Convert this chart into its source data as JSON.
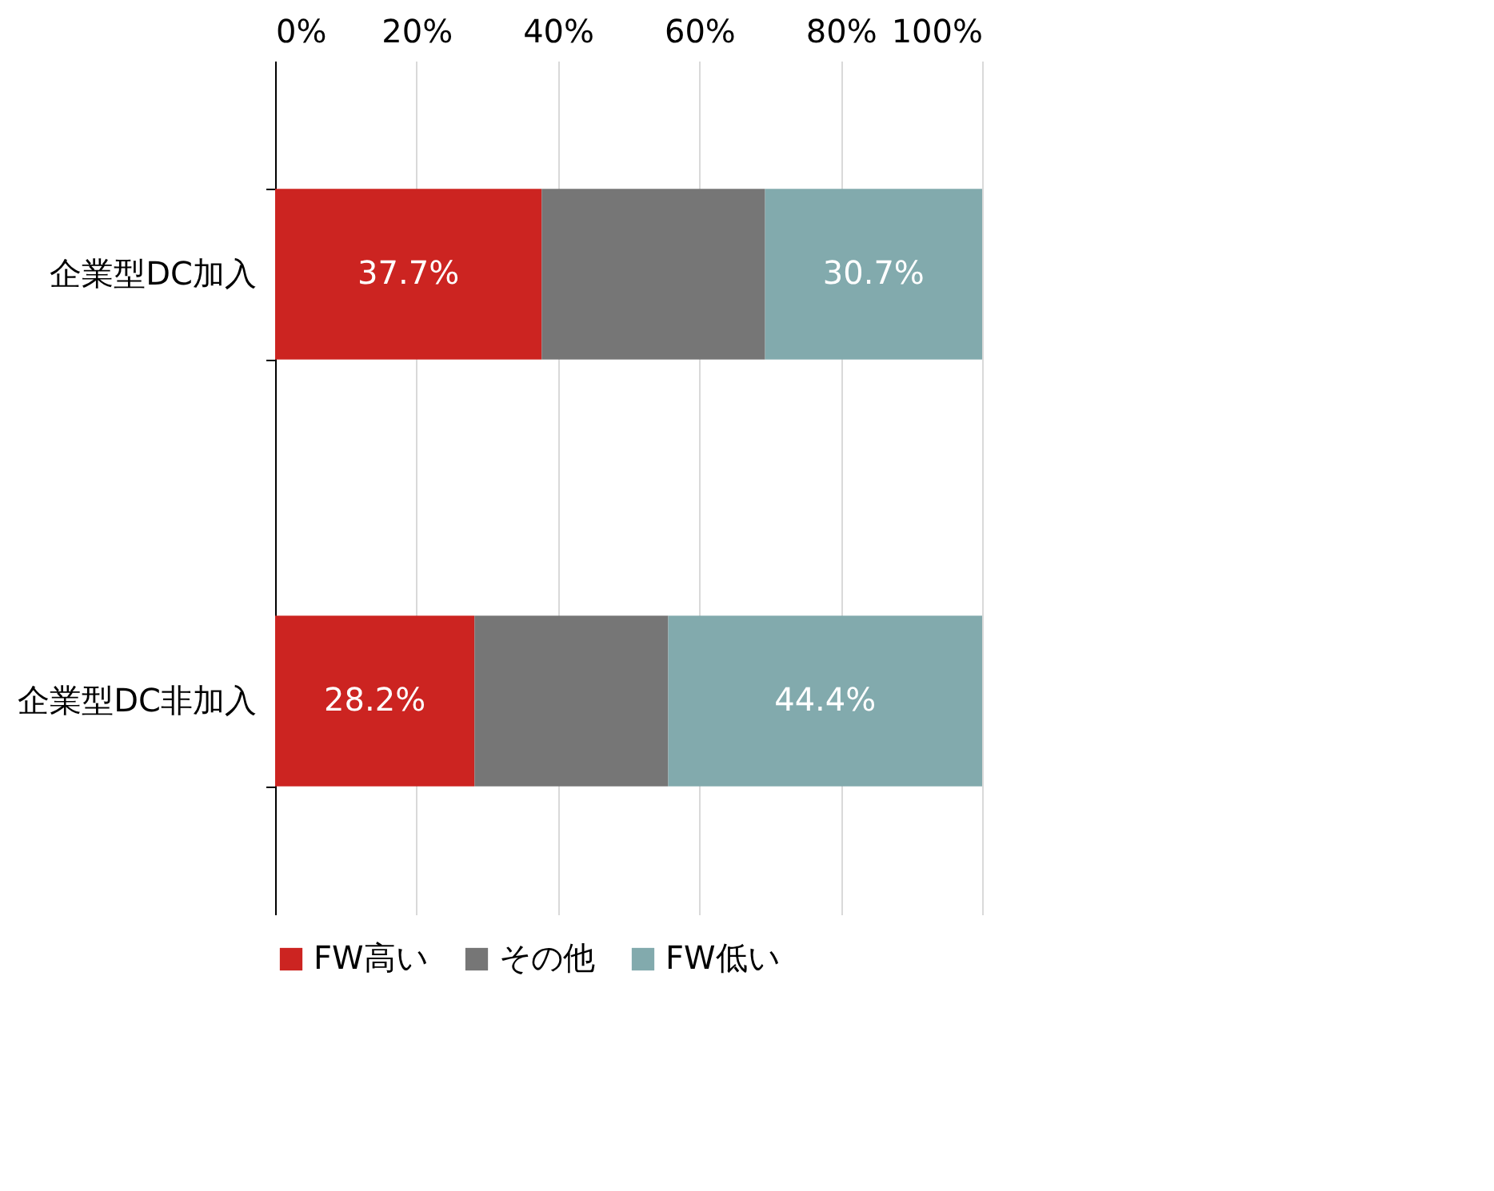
{
  "chart_data": {
    "type": "bar",
    "orientation": "horizontal",
    "stacked": true,
    "categories": [
      "企業型DC加入",
      "企業型DC非加入"
    ],
    "series": [
      {
        "name": "FW高い",
        "color": "#cc2421",
        "values": [
          37.7,
          28.2
        ],
        "value_labels": [
          "37.7%",
          "28.2%"
        ]
      },
      {
        "name": "その他",
        "color": "#767676",
        "values": [
          31.6,
          27.4
        ],
        "value_labels": [
          null,
          null
        ]
      },
      {
        "name": "FW低い",
        "color": "#82aaad",
        "values": [
          30.7,
          44.4
        ],
        "value_labels": [
          "30.7%",
          "44.4%"
        ]
      }
    ],
    "xlim": [
      0,
      100
    ],
    "xticks": [
      {
        "value": 0,
        "label": "0%"
      },
      {
        "value": 20,
        "label": "20%"
      },
      {
        "value": 40,
        "label": "40%"
      },
      {
        "value": 60,
        "label": "60%"
      },
      {
        "value": 80,
        "label": "80%"
      },
      {
        "value": 100,
        "label": "100%"
      }
    ],
    "grid": "x",
    "legend": "bottom"
  }
}
